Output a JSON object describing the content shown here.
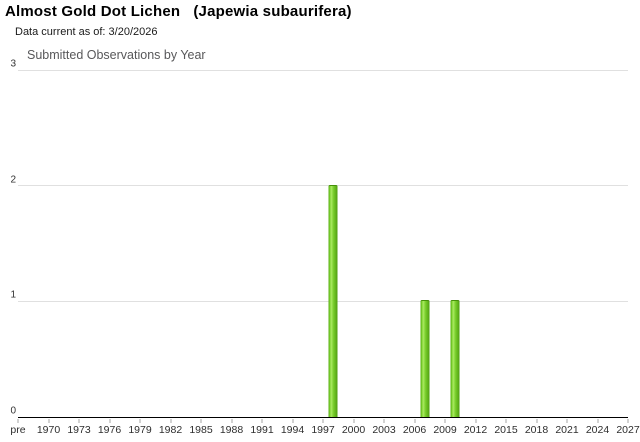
{
  "page": {
    "title": "Almost Gold Dot Lichen   (Japewia subaurifera)",
    "subtitle": "Data current as of: 3/20/2026"
  },
  "chart_data": {
    "type": "bar",
    "title": "Submitted Observations by Year",
    "xlabel": "",
    "ylabel": "",
    "x_tick_labels": [
      "pre",
      "1970",
      "1973",
      "1976",
      "1979",
      "1982",
      "1985",
      "1988",
      "1991",
      "1994",
      "1997",
      "2000",
      "2003",
      "2006",
      "2009",
      "2012",
      "2015",
      "2018",
      "2021",
      "2024",
      "2027"
    ],
    "y_ticks": [
      0,
      1,
      2,
      3
    ],
    "ylim": [
      0,
      3
    ],
    "grid": "horizontal",
    "legend_position": "none",
    "points": [
      {
        "year": 1998,
        "count": 2
      },
      {
        "year": 2007,
        "count": 1
      },
      {
        "year": 2010,
        "count": 1
      }
    ],
    "colors": {
      "bar_main": "#76cc29",
      "bar_highlight": "#a9ea60",
      "bar_shade_left": "#5aa918",
      "bar_shade_right": "#4f9d11",
      "bar_border": "#459008",
      "gridline": "#e0e0e0",
      "axis_line": "#000000",
      "axis_text": "#2e2e2e",
      "chart_title_text": "#58585a"
    }
  }
}
